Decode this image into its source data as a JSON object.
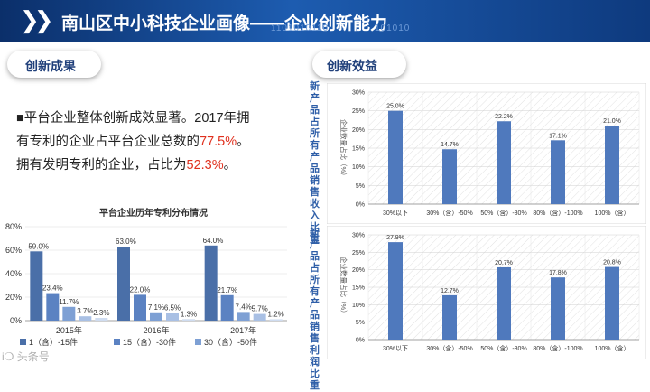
{
  "header": {
    "title": "南山区中小科技企业画像——企业创新能力",
    "deco1": "1101010110",
    "deco2": "101010"
  },
  "left_section": {
    "title": "创新成果"
  },
  "right_section": {
    "title": "创新效益"
  },
  "bullet": {
    "marker": "■",
    "part1": "平台企业整体创新成效显著。2017年拥有专利的企业占平台企业总数的",
    "value1": "77.5%",
    "part2": "。拥有发明专利的企业，占比为",
    "value2": "52.3%",
    "part3": "。"
  },
  "watermark": "i❍ 头条号",
  "chart_data": [
    {
      "type": "bar",
      "title": "平台企业历年专利分布情况",
      "categories": [
        "2015年",
        "2016年",
        "2017年"
      ],
      "series": [
        {
          "name": "1（含）-15件",
          "values": [
            59.0,
            63.0,
            64.0
          ],
          "labels": [
            "59.0%",
            "63.0%",
            "64.0%"
          ]
        },
        {
          "name": "15（含）-30件",
          "values": [
            23.4,
            22.0,
            21.7
          ],
          "labels": [
            "23.4%",
            "22.0%",
            "21.7%"
          ]
        },
        {
          "name": "30（含）-50件",
          "values": [
            11.7,
            7.1,
            7.4
          ],
          "labels": [
            "11.7%",
            "7.1%",
            "7.4%"
          ]
        },
        {
          "name": "",
          "values": [
            3.7,
            6.5,
            5.7
          ],
          "labels": [
            "3.7%",
            "6.5%",
            "5.7%"
          ]
        },
        {
          "name": "",
          "values": [
            2.3,
            1.3,
            1.2
          ],
          "labels": [
            "2.3%",
            "1.3%",
            "1.2%"
          ]
        }
      ],
      "yticks": [
        "0%",
        "20%",
        "40%",
        "60%",
        "80%"
      ],
      "ylim": [
        0,
        80
      ],
      "colors": [
        "#4a6fa8",
        "#5b82c2",
        "#7ea0d4",
        "#a9c0e4",
        "#cfdcf0"
      ]
    },
    {
      "type": "bar",
      "side_label": "新产品占所有产品销售收入比重",
      "ylabel": "企业数量占比（%）",
      "categories": [
        "30%以下",
        "30%（含）-50%",
        "50%（含）-80%",
        "80%（含）-100%",
        "100%（含）"
      ],
      "values": [
        25.0,
        14.7,
        22.2,
        17.1,
        21.0
      ],
      "labels": [
        "25.0%",
        "14.7%",
        "22.2%",
        "17.1%",
        "21.0%"
      ],
      "yticks": [
        "0%",
        "5%",
        "10%",
        "15%",
        "20%",
        "25%",
        "30%"
      ],
      "ylim": [
        0,
        30
      ],
      "color": "#4f79bd"
    },
    {
      "type": "bar",
      "side_label": "新产品占所有产品销售利润比重",
      "ylabel": "企业数量占比（%）",
      "categories": [
        "30%以下",
        "30%（含）-50%",
        "50%（含）-80%",
        "80%（含）-100%",
        "100%（含）"
      ],
      "values": [
        27.9,
        12.7,
        20.7,
        17.8,
        20.8
      ],
      "labels": [
        "27.9%",
        "12.7%",
        "20.7%",
        "17.8%",
        "20.8%"
      ],
      "yticks": [
        "0%",
        "5%",
        "10%",
        "15%",
        "20%",
        "25%",
        "30%"
      ],
      "ylim": [
        0,
        30
      ],
      "color": "#4f79bd"
    }
  ]
}
